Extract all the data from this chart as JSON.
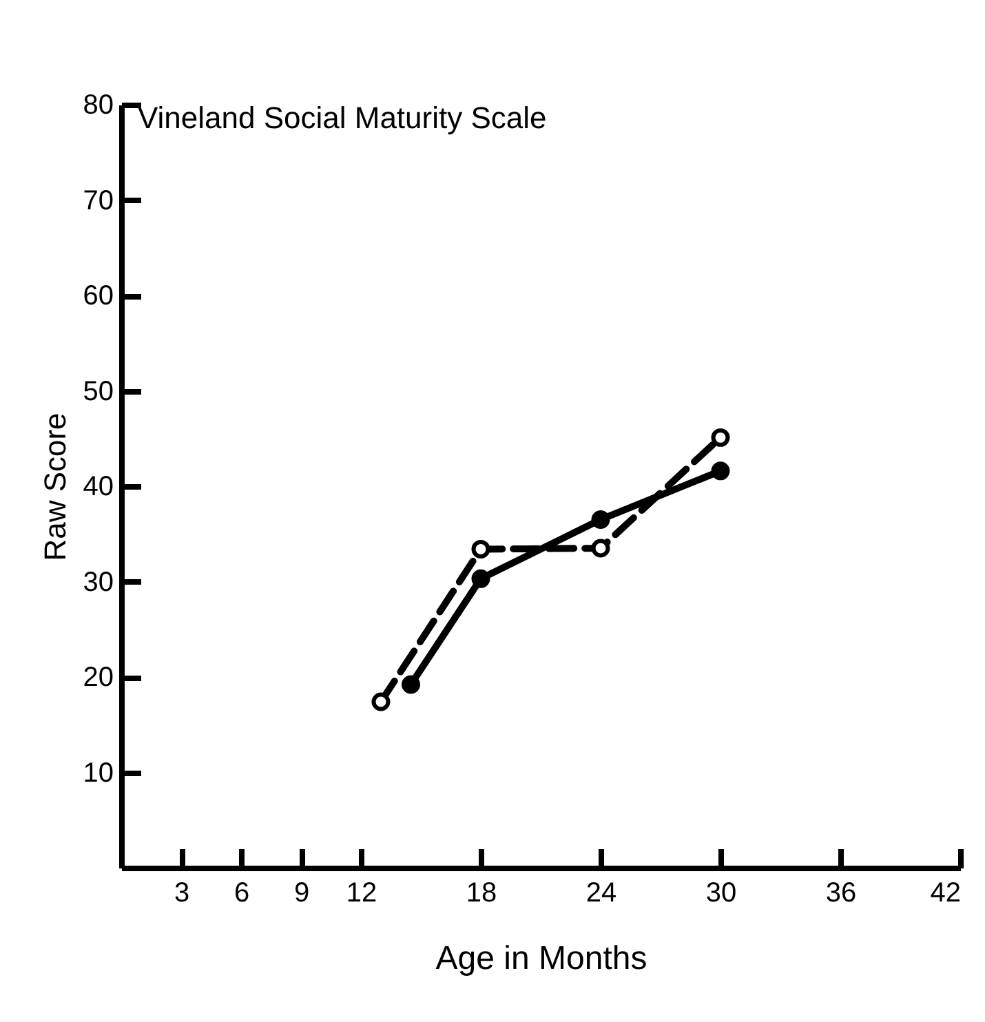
{
  "chart_data": {
    "type": "line",
    "title": "Vineland Social Maturity Scale",
    "xlabel": "Age in Months",
    "ylabel": "Raw Score",
    "xlim": [
      0,
      42
    ],
    "xticks": [
      3,
      6,
      9,
      12,
      18,
      24,
      30,
      36,
      42
    ],
    "ylim": [
      0,
      80
    ],
    "yticks": [
      10,
      20,
      30,
      40,
      50,
      60,
      70,
      80
    ],
    "marker": "circle",
    "series": [
      {
        "color": "#000000",
        "line_style": "solid",
        "x": [
          14.5,
          18,
          24,
          30
        ],
        "values": [
          19.2,
          30.3,
          36.5,
          41.6
        ]
      },
      {
        "color": "#000000",
        "line_style": "dashed",
        "x": [
          13,
          18,
          24,
          30
        ],
        "values": [
          17.4,
          33.4,
          33.5,
          45.1
        ]
      }
    ]
  }
}
